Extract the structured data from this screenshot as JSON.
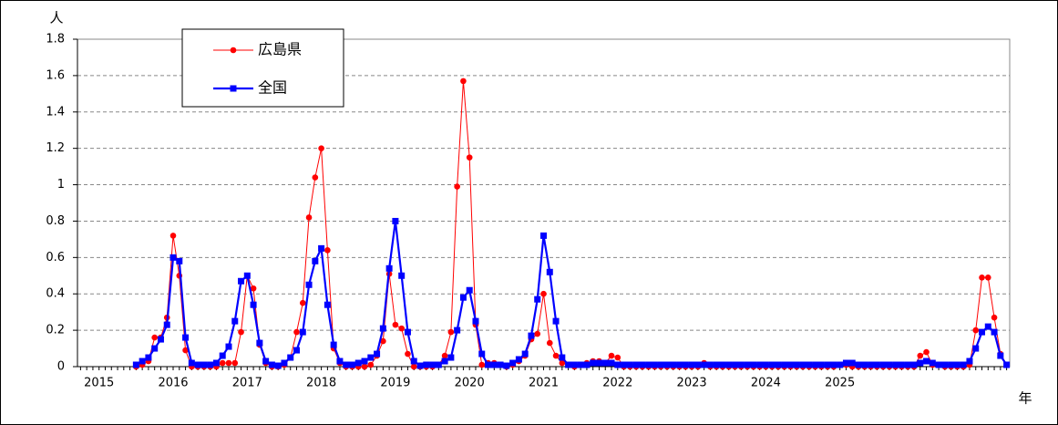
{
  "chart_data": {
    "type": "line",
    "y_unit": "人",
    "x_unit": "年",
    "categories": [
      null,
      null,
      null,
      "2015",
      null,
      null,
      null,
      null,
      null,
      null,
      null,
      null,
      null,
      null,
      null,
      "2016",
      null,
      null,
      null,
      null,
      null,
      null,
      null,
      null,
      null,
      null,
      null,
      "2017",
      null,
      null,
      null,
      null,
      null,
      null,
      null,
      null,
      null,
      null,
      null,
      "2018",
      null,
      null,
      null,
      null,
      null,
      null,
      null,
      null,
      null,
      null,
      null,
      "2019",
      null,
      null,
      null,
      null,
      null,
      null,
      null,
      null,
      null,
      null,
      null,
      "2020",
      null,
      null,
      null,
      null,
      null,
      null,
      null,
      null,
      null,
      null,
      null,
      "2021",
      null,
      null,
      null,
      null,
      null,
      null,
      null,
      null,
      null,
      null,
      null,
      "2022",
      null,
      null,
      null,
      null,
      null,
      null,
      null,
      null,
      null,
      null,
      null,
      "2023",
      null,
      null,
      null,
      null,
      null,
      null,
      null,
      null,
      null,
      null,
      null,
      "2024",
      null,
      null,
      null,
      null,
      null,
      null,
      null,
      null,
      null,
      null,
      null,
      "2025",
      null,
      null,
      null,
      null,
      null,
      null,
      null,
      null,
      null,
      null,
      null,
      null,
      null,
      null,
      null,
      null,
      null,
      null,
      null,
      null,
      null,
      null,
      null,
      null,
      null,
      null,
      null
    ],
    "series": [
      {
        "name": "広島県",
        "color": "#ff0000",
        "marker": "circle",
        "values": [
          null,
          null,
          null,
          null,
          null,
          null,
          null,
          null,
          null,
          0,
          0.01,
          0.03,
          0.16,
          0.16,
          0.27,
          0.72,
          0.5,
          0.09,
          0,
          0,
          0,
          0,
          0,
          0.02,
          0.02,
          0.02,
          0.19,
          0.5,
          0.43,
          0.12,
          0.02,
          0,
          0,
          0.01,
          0.05,
          0.19,
          0.35,
          0.82,
          1.04,
          1.2,
          0.64,
          0.1,
          0.02,
          0,
          0,
          0,
          0,
          0.01,
          0.06,
          0.14,
          0.51,
          0.23,
          0.21,
          0.07,
          0,
          0,
          0,
          0,
          0.01,
          0.06,
          0.19,
          0.99,
          1.57,
          1.15,
          0.23,
          0.01,
          0.02,
          0.02,
          0.01,
          0,
          0.01,
          0.03,
          0.06,
          0.15,
          0.18,
          0.4,
          0.13,
          0.06,
          0.02,
          0.01,
          0,
          0.01,
          0.02,
          0.03,
          0.03,
          0.02,
          0.06,
          0.05,
          0,
          0,
          0,
          0,
          0,
          0,
          0,
          0,
          0,
          0,
          0,
          0,
          0,
          0.02,
          0,
          0,
          0,
          0,
          0,
          0,
          0,
          0,
          0,
          0,
          0,
          0,
          0,
          0,
          0,
          0,
          0,
          0,
          0,
          0,
          0,
          0.01,
          0.01,
          0,
          0,
          0,
          0,
          0,
          0,
          0,
          0,
          0,
          0,
          0,
          0.06,
          0.08,
          0.01,
          0.01,
          0,
          0,
          0,
          0,
          0.01,
          0.2,
          0.49,
          0.49,
          0.27,
          0.07,
          0.01
        ]
      },
      {
        "name": "全国",
        "color": "#0000ff",
        "marker": "square",
        "values": [
          null,
          null,
          null,
          null,
          null,
          null,
          null,
          null,
          null,
          0.01,
          0.03,
          0.05,
          0.1,
          0.15,
          0.23,
          0.6,
          0.58,
          0.16,
          0.02,
          0.01,
          0.01,
          0.01,
          0.02,
          0.06,
          0.11,
          0.25,
          0.47,
          0.5,
          0.34,
          0.13,
          0.03,
          0.01,
          0.005,
          0.02,
          0.05,
          0.09,
          0.19,
          0.45,
          0.58,
          0.65,
          0.34,
          0.12,
          0.03,
          0.01,
          0.01,
          0.02,
          0.03,
          0.05,
          0.07,
          0.21,
          0.54,
          0.8,
          0.5,
          0.19,
          0.03,
          0.005,
          0.01,
          0.01,
          0.01,
          0.03,
          0.05,
          0.2,
          0.38,
          0.42,
          0.25,
          0.07,
          0.01,
          0.01,
          0.01,
          0.005,
          0.02,
          0.04,
          0.07,
          0.17,
          0.37,
          0.72,
          0.52,
          0.25,
          0.05,
          0.01,
          0.01,
          0.01,
          0.01,
          0.02,
          0.02,
          0.02,
          0.02,
          0.01,
          0.01,
          0.01,
          0.01,
          0.01,
          0.01,
          0.01,
          0.01,
          0.01,
          0.01,
          0.01,
          0.01,
          0.01,
          0.01,
          0.01,
          0.01,
          0.01,
          0.01,
          0.01,
          0.01,
          0.01,
          0.01,
          0.01,
          0.01,
          0.01,
          0.01,
          0.01,
          0.01,
          0.01,
          0.01,
          0.01,
          0.01,
          0.01,
          0.01,
          0.01,
          0.01,
          0.01,
          0.02,
          0.02,
          0.01,
          0.01,
          0.01,
          0.01,
          0.01,
          0.01,
          0.01,
          0.01,
          0.01,
          0.01,
          0.02,
          0.03,
          0.02,
          0.01,
          0.01,
          0.01,
          0.01,
          0.01,
          0.03,
          0.1,
          0.19,
          0.22,
          0.19,
          0.06,
          0.01
        ]
      }
    ],
    "ylim": [
      0,
      1.8
    ],
    "yticks": [
      0,
      0.2,
      0.4,
      0.6,
      0.8,
      1,
      1.2,
      1.4,
      1.6,
      1.8
    ],
    "grid": true,
    "legend": "upper left"
  }
}
